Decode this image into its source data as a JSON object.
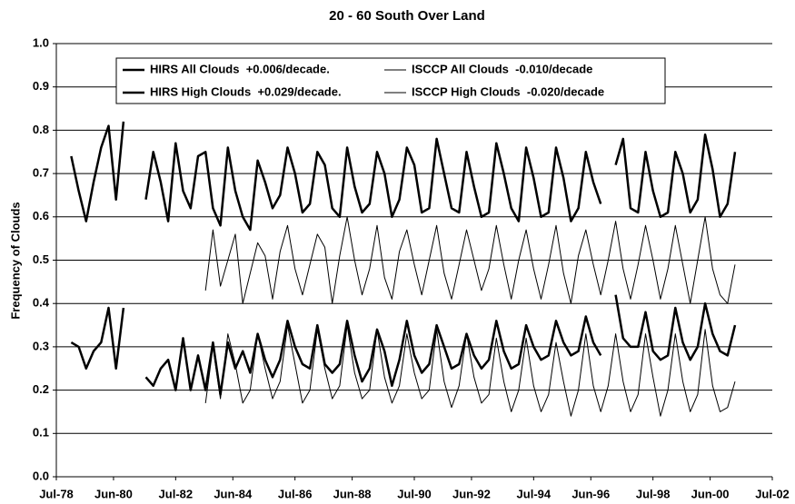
{
  "chart_data": {
    "type": "line",
    "title": "20 - 60 South Over Land",
    "y_label": "Frequency of Clouds",
    "x": [
      1979,
      1979.25,
      1979.5,
      1979.75,
      1980,
      1980.25,
      1980.5,
      1980.75,
      1981,
      1981.25,
      1981.5,
      1981.75,
      1982,
      1982.25,
      1982.5,
      1982.75,
      1983,
      1983.25,
      1983.5,
      1983.75,
      1984,
      1984.25,
      1984.5,
      1984.75,
      1985,
      1985.25,
      1985.5,
      1985.75,
      1986,
      1986.25,
      1986.5,
      1986.75,
      1987,
      1987.25,
      1987.5,
      1987.75,
      1988,
      1988.25,
      1988.5,
      1988.75,
      1989,
      1989.25,
      1989.5,
      1989.75,
      1990,
      1990.25,
      1990.5,
      1990.75,
      1991,
      1991.25,
      1991.5,
      1991.75,
      1992,
      1992.25,
      1992.5,
      1992.75,
      1993,
      1993.25,
      1993.5,
      1993.75,
      1994,
      1994.25,
      1994.5,
      1994.75,
      1995,
      1995.25,
      1995.5,
      1995.75,
      1996,
      1996.25,
      1996.5,
      1996.75,
      1997,
      1997.25,
      1997.5,
      1997.75,
      1998,
      1998.25,
      1998.5,
      1998.75,
      1999,
      1999.25,
      1999.5,
      1999.75,
      2000,
      2000.25,
      2000.5,
      2000.75,
      2001,
      2001.25
    ],
    "series": [
      {
        "name": "HIRS All Clouds  +0.006/decade.",
        "color": "#000000",
        "line_width": 2.5,
        "values": [
          0.74,
          0.66,
          0.59,
          0.68,
          0.76,
          0.81,
          0.64,
          0.82,
          null,
          null,
          0.64,
          0.75,
          0.68,
          0.59,
          0.77,
          0.66,
          0.62,
          0.74,
          0.75,
          0.62,
          0.58,
          0.76,
          0.66,
          0.6,
          0.57,
          0.73,
          0.68,
          0.62,
          0.65,
          0.76,
          0.7,
          0.61,
          0.63,
          0.75,
          0.72,
          0.62,
          0.6,
          0.76,
          0.67,
          0.61,
          0.63,
          0.75,
          0.7,
          0.6,
          0.64,
          0.76,
          0.72,
          0.61,
          0.62,
          0.78,
          0.7,
          0.62,
          0.61,
          0.75,
          0.67,
          0.6,
          0.61,
          0.77,
          0.7,
          0.62,
          0.59,
          0.76,
          0.69,
          0.6,
          0.61,
          0.76,
          0.69,
          0.59,
          0.62,
          0.75,
          0.68,
          0.63,
          null,
          0.72,
          0.78,
          0.62,
          0.61,
          0.75,
          0.66,
          0.6,
          0.61,
          0.75,
          0.7,
          0.61,
          0.64,
          0.79,
          0.71,
          0.6,
          0.63,
          0.75
        ]
      },
      {
        "name": "HIRS High Clouds  +0.029/decade.",
        "color": "#000000",
        "line_width": 2.5,
        "values": [
          0.31,
          0.3,
          0.25,
          0.29,
          0.31,
          0.39,
          0.25,
          0.39,
          null,
          null,
          0.23,
          0.21,
          0.25,
          0.27,
          0.2,
          0.32,
          0.2,
          0.28,
          0.2,
          0.31,
          0.19,
          0.31,
          0.25,
          0.29,
          0.24,
          0.33,
          0.27,
          0.23,
          0.27,
          0.36,
          0.3,
          0.26,
          0.25,
          0.35,
          0.26,
          0.24,
          0.26,
          0.36,
          0.28,
          0.22,
          0.25,
          0.34,
          0.29,
          0.21,
          0.27,
          0.36,
          0.28,
          0.24,
          0.26,
          0.35,
          0.3,
          0.25,
          0.26,
          0.33,
          0.28,
          0.25,
          0.27,
          0.36,
          0.29,
          0.25,
          0.26,
          0.35,
          0.3,
          0.27,
          0.28,
          0.36,
          0.31,
          0.28,
          0.29,
          0.37,
          0.31,
          0.28,
          null,
          0.42,
          0.32,
          0.3,
          0.3,
          0.38,
          0.29,
          0.27,
          0.28,
          0.39,
          0.31,
          0.27,
          0.3,
          0.4,
          0.33,
          0.29,
          0.28,
          0.35
        ]
      },
      {
        "name": "ISCCP All Clouds  -0.010/decade",
        "color": "#000000",
        "line_width": 1,
        "values": [
          null,
          null,
          null,
          null,
          null,
          null,
          null,
          null,
          null,
          null,
          null,
          null,
          null,
          null,
          null,
          null,
          null,
          null,
          0.43,
          0.57,
          0.44,
          0.5,
          0.56,
          0.4,
          0.47,
          0.54,
          0.51,
          0.41,
          0.52,
          0.58,
          0.48,
          0.42,
          0.49,
          0.56,
          0.53,
          0.4,
          0.51,
          0.6,
          0.5,
          0.42,
          0.48,
          0.58,
          0.46,
          0.41,
          0.52,
          0.57,
          0.49,
          0.42,
          0.5,
          0.58,
          0.47,
          0.41,
          0.49,
          0.57,
          0.5,
          0.43,
          0.48,
          0.58,
          0.49,
          0.41,
          0.5,
          0.57,
          0.48,
          0.41,
          0.49,
          0.58,
          0.47,
          0.4,
          0.51,
          0.57,
          0.49,
          0.42,
          0.5,
          0.59,
          0.48,
          0.41,
          0.49,
          0.58,
          0.5,
          0.41,
          0.48,
          0.58,
          0.49,
          0.4,
          0.5,
          0.6,
          0.48,
          0.42,
          0.4,
          0.49
        ]
      },
      {
        "name": "ISCCP High Clouds  -0.020/decade",
        "color": "#000000",
        "line_width": 1,
        "values": [
          null,
          null,
          null,
          null,
          null,
          null,
          null,
          null,
          null,
          null,
          null,
          null,
          null,
          null,
          null,
          null,
          null,
          null,
          0.17,
          0.3,
          0.18,
          0.33,
          0.26,
          0.17,
          0.2,
          0.33,
          0.25,
          0.18,
          0.22,
          0.35,
          0.26,
          0.17,
          0.2,
          0.34,
          0.25,
          0.18,
          0.21,
          0.35,
          0.24,
          0.18,
          0.2,
          0.34,
          0.23,
          0.17,
          0.21,
          0.33,
          0.24,
          0.18,
          0.2,
          0.34,
          0.22,
          0.16,
          0.21,
          0.33,
          0.23,
          0.17,
          0.19,
          0.32,
          0.22,
          0.15,
          0.2,
          0.32,
          0.21,
          0.15,
          0.19,
          0.31,
          0.22,
          0.14,
          0.2,
          0.33,
          0.21,
          0.15,
          0.21,
          0.33,
          0.22,
          0.15,
          0.19,
          0.33,
          0.23,
          0.14,
          0.2,
          0.33,
          0.22,
          0.15,
          0.19,
          0.34,
          0.21,
          0.15,
          0.16,
          0.22
        ]
      }
    ],
    "xlim": [
      1978.5,
      2002.5
    ],
    "xticks": [
      {
        "value": 1978.5,
        "label": "Jul-78"
      },
      {
        "value": 1980.417,
        "label": "Jun-80"
      },
      {
        "value": 1982.5,
        "label": "Jul-82"
      },
      {
        "value": 1984.417,
        "label": "Jun-84"
      },
      {
        "value": 1986.5,
        "label": "Jul-86"
      },
      {
        "value": 1988.417,
        "label": "Jun-88"
      },
      {
        "value": 1990.5,
        "label": "Jul-90"
      },
      {
        "value": 1992.417,
        "label": "Jun-92"
      },
      {
        "value": 1994.5,
        "label": "Jul-94"
      },
      {
        "value": 1996.417,
        "label": "Jun-96"
      },
      {
        "value": 1998.5,
        "label": "Jul-98"
      },
      {
        "value": 2000.417,
        "label": "Jun-00"
      },
      {
        "value": 2002.5,
        "label": "Jul-02"
      }
    ],
    "ylim": [
      0,
      1
    ],
    "yticks": [
      {
        "value": 0,
        "label": "0.0"
      },
      {
        "value": 0.1,
        "label": "0.1"
      },
      {
        "value": 0.2,
        "label": "0.2"
      },
      {
        "value": 0.3,
        "label": "0.3"
      },
      {
        "value": 0.4,
        "label": "0.4"
      },
      {
        "value": 0.5,
        "label": "0.5"
      },
      {
        "value": 0.6,
        "label": "0.6"
      },
      {
        "value": 0.7,
        "label": "0.7"
      },
      {
        "value": 0.8,
        "label": "0.8"
      },
      {
        "value": 0.9,
        "label": "0.9"
      },
      {
        "value": 1,
        "label": "1.0"
      }
    ],
    "grid": true
  }
}
